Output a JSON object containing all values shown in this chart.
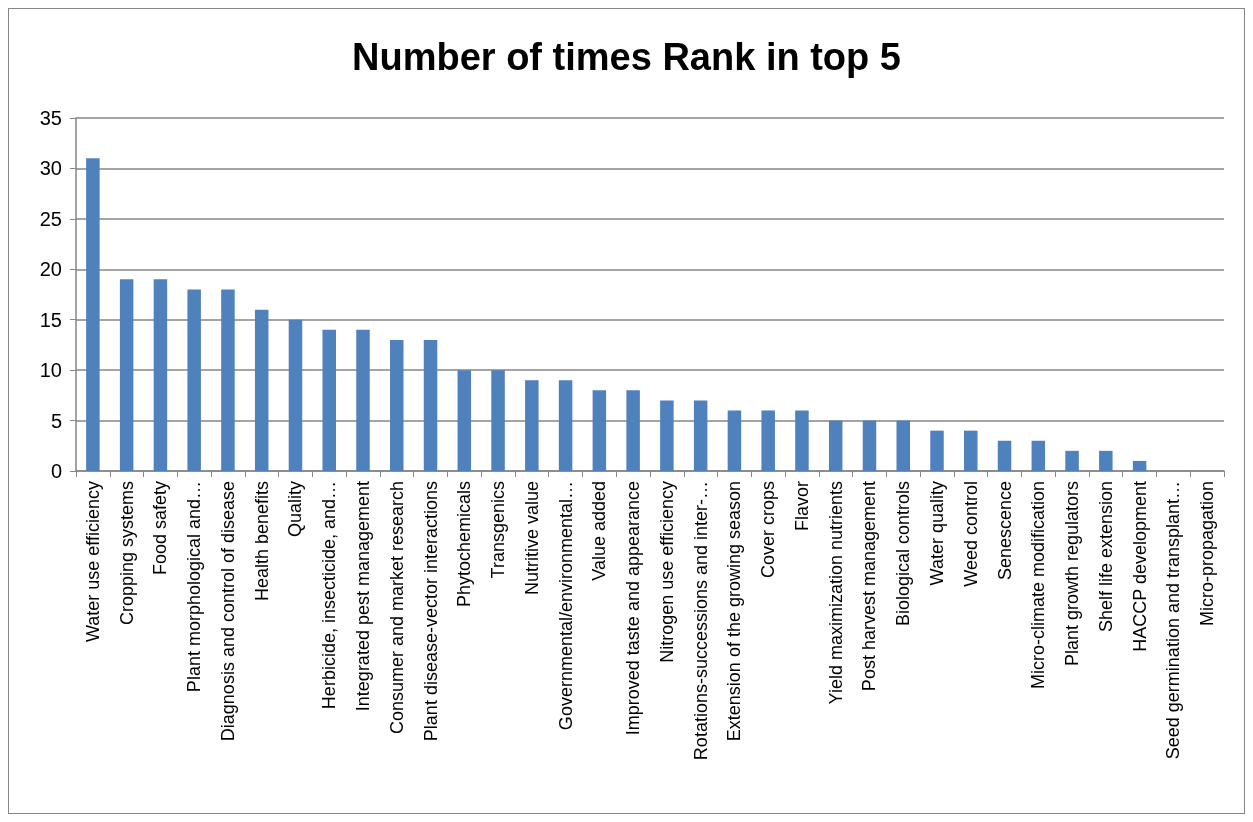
{
  "chart_data": {
    "type": "bar",
    "title": "Number of times Rank in top 5",
    "categories": [
      "Water use efficiency",
      "Cropping systems",
      "Food safety",
      "Plant morphological and…",
      "Diagnosis and control of disease",
      "Health benefits",
      "Quality",
      "Herbicide, insecticide, and…",
      "Integrated pest management",
      "Consumer and market research",
      "Plant disease-vector interactions",
      "Phytochemicals",
      "Transgenics",
      "Nutritive value",
      "Governmental/environmental…",
      "Value added",
      "Improved taste and appearance",
      "Nitrogen use efficiency",
      "Rotations-successions and inter-…",
      "Extension of the growing season",
      "Cover crops",
      "Flavor",
      "Yield maximization nutrients",
      "Post harvest management",
      "Biological controls",
      "Water quality",
      "Weed control",
      "Senescence",
      "Micro-climate modification",
      "Plant growth regulators",
      "Shelf life extension",
      "HACCP development",
      "Seed germination and transplant…",
      "Micro-propagation"
    ],
    "values": [
      31,
      19,
      19,
      18,
      18,
      16,
      15,
      14,
      14,
      13,
      13,
      10,
      10,
      9,
      9,
      8,
      8,
      7,
      7,
      6,
      6,
      6,
      5,
      5,
      5,
      4,
      4,
      3,
      3,
      2,
      2,
      1,
      0,
      0
    ],
    "color": "#4f81bd",
    "ylim": [
      0,
      35
    ],
    "yticks": [
      0,
      5,
      10,
      15,
      20,
      25,
      30,
      35
    ],
    "grid": "y"
  }
}
